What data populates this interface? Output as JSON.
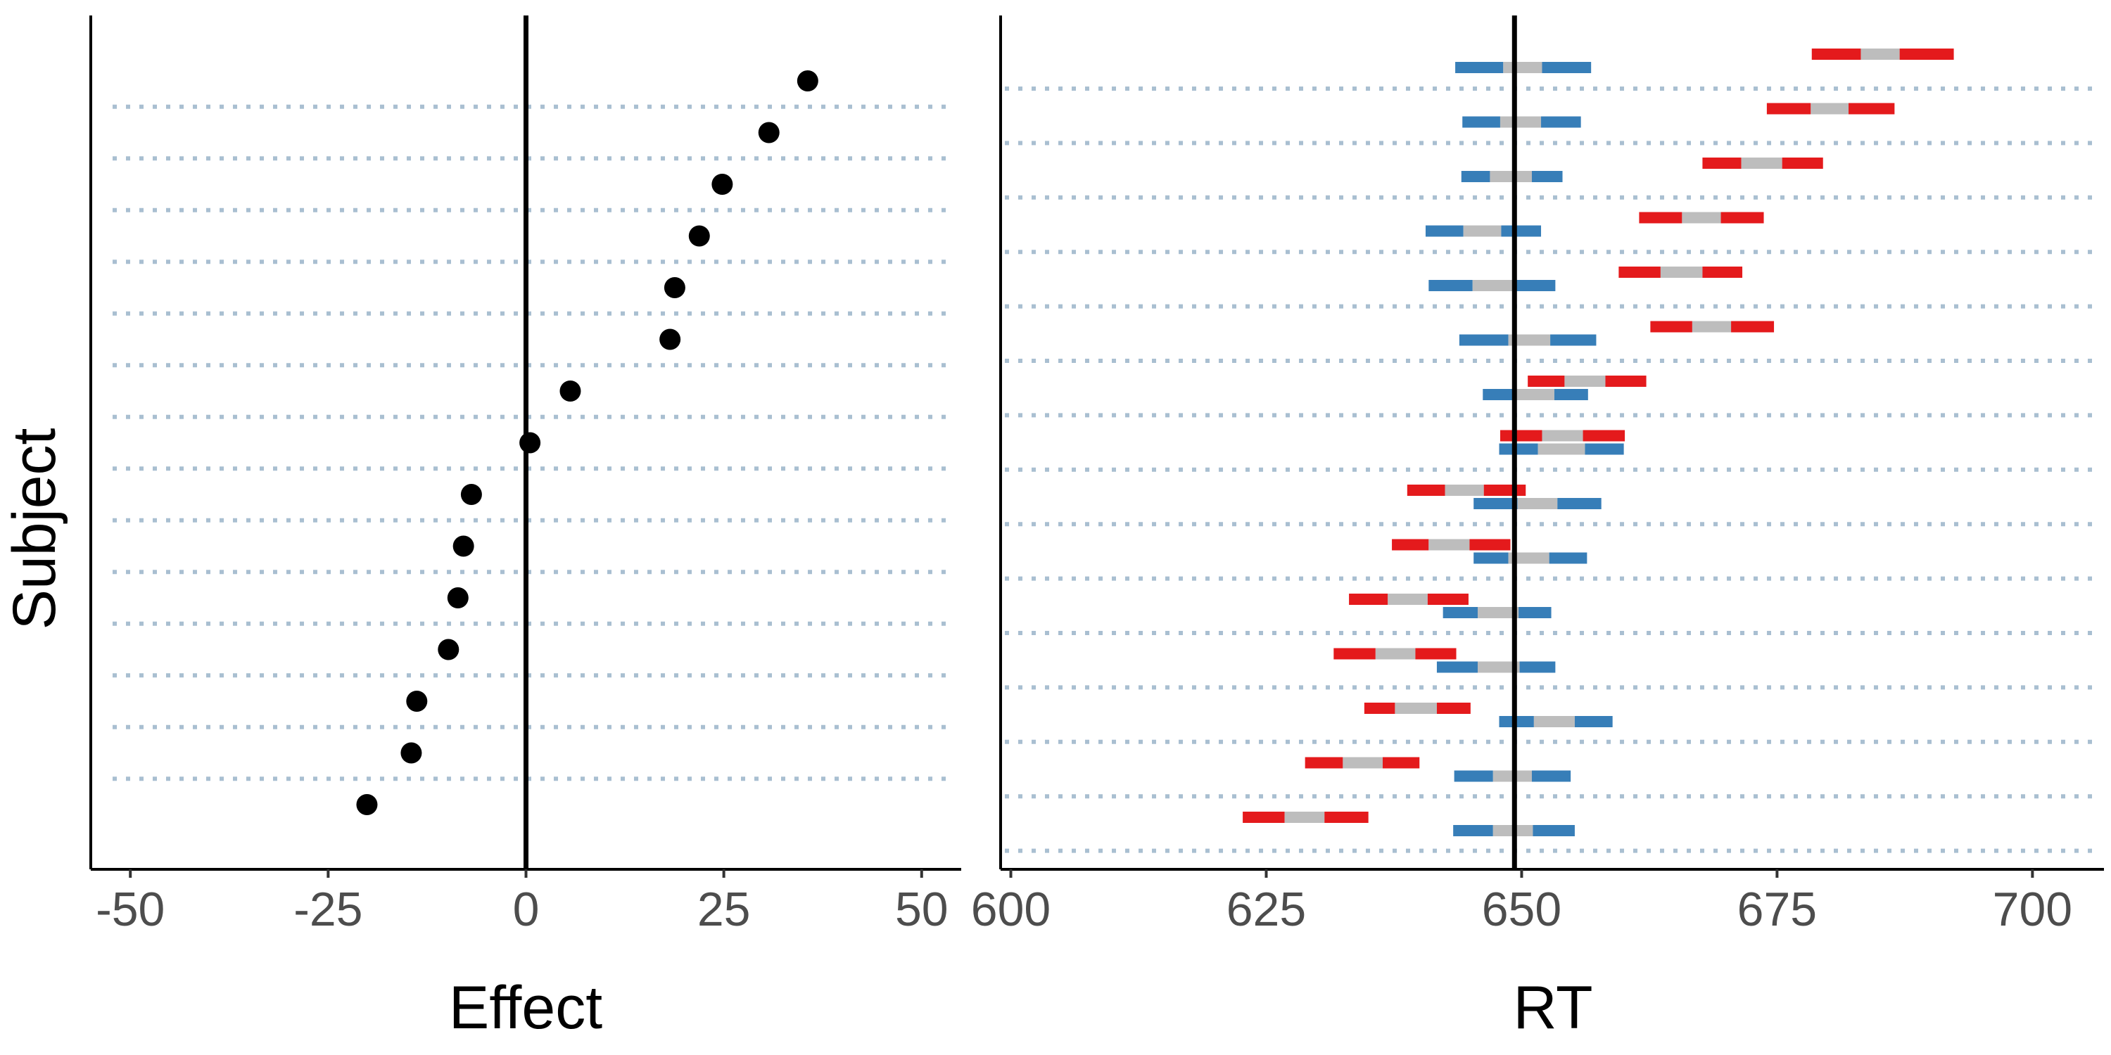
{
  "colors": {
    "background": "#ffffff",
    "point": "#000000",
    "zero_line": "#000000",
    "guide_line": "#a9bfd1",
    "interval_red": "#e41a1c",
    "interval_blue": "#377eb8",
    "interval_center": "#bdbdbd",
    "axis_text": "#4d4d4d",
    "axis_title": "#000000"
  },
  "chart_data": [
    {
      "type": "scatter",
      "title": "",
      "xlabel": "Effect",
      "ylabel": "Subject",
      "xlim": [
        -55,
        55
      ],
      "x_ticks": [
        -50,
        -25,
        0,
        25,
        50
      ],
      "x_tick_labels": [
        "-50",
        "-25",
        "0",
        "25",
        "50"
      ],
      "reference_line_x": 0,
      "y_tick_labels_shown": false,
      "grid": "horizontal dotted lines between subjects",
      "points": [
        35.6,
        30.7,
        24.8,
        21.9,
        18.8,
        18.2,
        5.6,
        0.5,
        -6.9,
        -7.9,
        -8.6,
        -9.8,
        -13.8,
        -14.5,
        -20.1
      ]
    },
    {
      "type": "interval",
      "title": "",
      "xlabel": "RT",
      "xlim": [
        599,
        707
      ],
      "x_ticks": [
        600,
        625,
        650,
        675,
        700
      ],
      "x_tick_labels": [
        "600",
        "625",
        "650",
        "675",
        "700"
      ],
      "reference_line_x": 649.3,
      "y_tick_labels_shown": false,
      "grid": "horizontal dotted lines between subjects",
      "series": [
        {
          "condition_color": "red",
          "intervals": [
            [
              678.4,
              683.2,
              687.0,
              692.3
            ],
            [
              674.0,
              678.3,
              682.0,
              686.5
            ],
            [
              667.7,
              671.5,
              675.5,
              679.5
            ],
            [
              661.5,
              665.7,
              669.5,
              673.7
            ],
            [
              659.5,
              663.6,
              667.7,
              671.6
            ],
            [
              662.6,
              666.7,
              670.5,
              674.7
            ],
            [
              650.6,
              654.2,
              658.2,
              662.2
            ],
            [
              647.9,
              652.0,
              656.0,
              660.1
            ],
            [
              638.8,
              642.5,
              646.3,
              650.4
            ],
            [
              637.3,
              640.9,
              644.9,
              648.9
            ],
            [
              633.1,
              636.9,
              640.8,
              644.8
            ],
            [
              631.6,
              635.7,
              639.6,
              643.6
            ],
            [
              634.6,
              637.6,
              641.7,
              645.0
            ],
            [
              628.8,
              632.5,
              636.4,
              640.0
            ],
            [
              622.7,
              626.8,
              630.7,
              635.0
            ]
          ]
        },
        {
          "condition_color": "blue",
          "intervals": [
            [
              643.5,
              648.2,
              652.0,
              656.8
            ],
            [
              644.2,
              647.9,
              651.9,
              655.8
            ],
            [
              644.1,
              646.9,
              651.0,
              654.0
            ],
            [
              640.6,
              644.3,
              648.0,
              651.9
            ],
            [
              640.9,
              645.2,
              649.3,
              653.3
            ],
            [
              643.9,
              648.7,
              652.8,
              657.3
            ],
            [
              646.2,
              649.5,
              653.2,
              656.5
            ],
            [
              647.8,
              651.6,
              656.2,
              660.0
            ],
            [
              645.3,
              649.6,
              653.5,
              657.8
            ],
            [
              645.3,
              648.7,
              652.7,
              656.4
            ],
            [
              642.3,
              645.7,
              649.7,
              652.9
            ],
            [
              641.7,
              645.7,
              649.8,
              653.3
            ],
            [
              647.8,
              651.2,
              655.2,
              658.9
            ],
            [
              643.4,
              647.2,
              651.0,
              654.8
            ],
            [
              643.3,
              647.2,
              651.1,
              655.2
            ]
          ]
        }
      ]
    }
  ]
}
